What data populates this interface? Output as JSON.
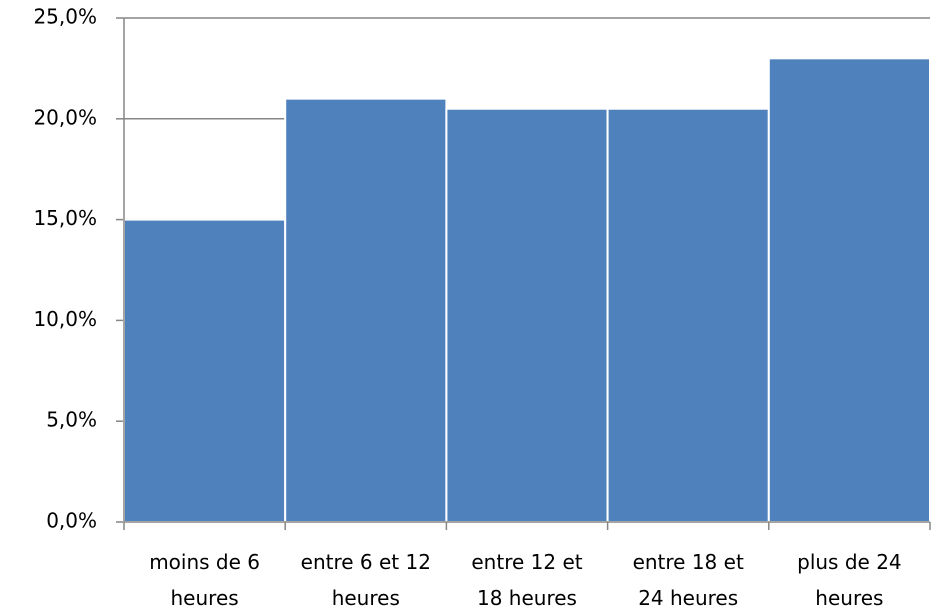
{
  "chart_data": {
    "type": "bar",
    "categories": [
      "moins de 6 heures",
      "entre 6 et 12 heures",
      "entre 12 et 18 heures",
      "entre 18 et 24 heures",
      "plus de 24 heures"
    ],
    "values": [
      15.0,
      21.0,
      20.5,
      20.5,
      23.0
    ],
    "color": "#4f81bd",
    "ylim": [
      0,
      25
    ],
    "yticks": [
      {
        "value": 0,
        "label": "0,0%"
      },
      {
        "value": 5,
        "label": "5,0%"
      },
      {
        "value": 10,
        "label": "10,0%"
      },
      {
        "value": 15,
        "label": "15,0%"
      },
      {
        "value": 20,
        "label": "20,0%"
      },
      {
        "value": 25,
        "label": "25,0%"
      }
    ],
    "grid": true
  }
}
